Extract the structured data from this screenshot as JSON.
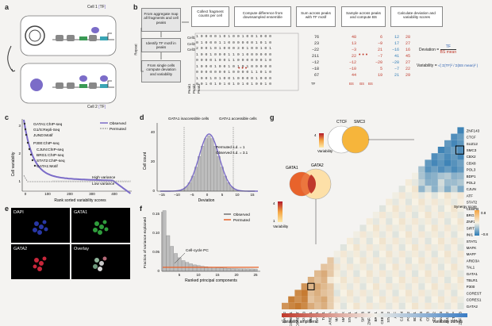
{
  "panels": {
    "a": "a",
    "b": "b",
    "c": "c",
    "d": "d",
    "e": "e",
    "f": "f",
    "g": "g"
  },
  "panel_a": {
    "cell1": "Cell 1",
    "cell2": "Cell 2",
    "tf": "TF"
  },
  "panel_b": {
    "side_label": "Repeat",
    "flow_left": [
      "From aggregate map all fragments and cell peaks",
      "Identify TF motif in peaks",
      "From single cells compute deviation and variability"
    ],
    "steps": [
      "Collect fragment counts per cell",
      "Compute difference from downsampled ensemble",
      "Sum across peaks with TF motif",
      "Sample across peaks and compute BS",
      "Calculate deviation and variability scores"
    ],
    "rows": [
      "Cell1",
      "Cell2",
      "Cell3",
      "",
      "",
      "",
      "",
      "",
      ""
    ],
    "peak_labels": [
      "Peak1",
      "Peak2",
      "Peak3"
    ],
    "matrix": [
      "1 0 0 0 0 1 0 1 0 0 1 0 0 1 0 0 0",
      "0 1 0 0 0 1 1 0 0 0 0 0 0 1 0 1 0",
      "2 0 0 1 0 1 0 0 0 3 0 1 0 0 1 0 1",
      "1 0 0 1 0 0 0 1 1 0 1 0 0 0 0 0 0",
      "0 0 0 0 1 0 0 1 1 0 0 0 0 0 0 1 0",
      "1 0 0 0 1 0 0 1 0 1 0 1 0 0 0 0 0",
      "0 0 0 0 0 0 0 1 0 0 0 0 1 1 0 1 0",
      "1 0 0 1 0 1 0 0 1 0 0 0 0 1 0 0 0",
      "0 0 1 0 1 0 1 0 1 0 1 0 1 0 0 1 0"
    ],
    "sum_col": [
      "76",
      "23",
      "−22",
      "211",
      "−12",
      "−18",
      "67"
    ],
    "bs_col1": [
      "48",
      "13",
      "−3",
      "22",
      "−12",
      "−10",
      "44"
    ],
    "bs_col2": [
      "6",
      "−9",
      "21",
      "−7",
      "−20",
      "5",
      "19"
    ],
    "bs_col3": [
      "12",
      "17",
      "−16",
      "41",
      "−20",
      "−7",
      "21"
    ],
    "bs_col4": [
      "28",
      "27",
      "16",
      "45",
      "27",
      "22",
      "29"
    ],
    "tf_label": "TF",
    "bs_label": "BS",
    "deviation_label": "Deviation =",
    "variability_label": "Variability =",
    "formula_tf": "TF",
    "formula_bs": "BS mean",
    "formula_var": "√( Σ(TF)² / Σ(BS mean)² )"
  },
  "panel_c": {
    "ylabel": "Cell variability",
    "xlabel": "Rank sorted variability scores",
    "legend": [
      "Observed",
      "Permuted"
    ],
    "labels": [
      "GATA1:ChIP-seq",
      "G1/S:Repli-Seq",
      "JUND:Motif",
      "P300:ChIP-seq",
      "CJUN:ChIP-seq",
      "BRG1:ChIP-seq",
      "STAT2:ChIP-seq",
      "GATA1:Motif"
    ],
    "high": "High variance",
    "low": "Low variance",
    "xticks": [
      "0",
      "100",
      "200",
      "300",
      "400"
    ],
    "yticks": [
      "1",
      "2",
      "3"
    ]
  },
  "panel_d": {
    "ylabel": "Cell count",
    "xlabel": "Deviation",
    "left_title": "GATA1 inaccessible cells",
    "right_title": "GATA1 accessible cells",
    "perm": "Permuted s.d. = 1",
    "obs": "Observed s.d. = 3.1",
    "xticks": [
      "−15",
      "−10",
      "−5",
      "0",
      "5",
      "10",
      "15"
    ],
    "yticks": [
      "0",
      "20",
      "40"
    ]
  },
  "panel_e": {
    "labels": [
      "DAPI",
      "GATA1",
      "GATA2",
      "Overlay"
    ]
  },
  "panel_f": {
    "ylabel": "Fraction of variance explained",
    "xlabel": "Ranked principal components",
    "legend": [
      "Observed",
      "Permuted"
    ],
    "annotation": "Cell-cycle PC",
    "xticks": [
      "5",
      "10",
      "15",
      "20",
      "25"
    ],
    "yticks": [
      "0",
      "0.05",
      "0.10",
      "0.15"
    ]
  },
  "panel_g": {
    "genes": [
      "ZNF143",
      "CTCF",
      "SUZ12",
      "SMC3",
      "CBX2",
      "CBX8",
      "POL3",
      "BDP1",
      "POL2",
      "CJUN",
      "ATF",
      "STAT2",
      "CEBPB",
      "BRG1",
      "ZNF274",
      "SIRT6",
      "INI1",
      "STAT1",
      "MAFK",
      "MAFF",
      "ARID3A",
      "TAL1",
      "GATA1",
      "TBLR1",
      "P300",
      "COREST",
      "CORES1",
      "GATA2"
    ],
    "venn1": [
      "CTCF",
      "SMC3"
    ],
    "venn2": [
      "GATA1",
      "GATA2"
    ],
    "variability": "Variability",
    "scale_hi": "4",
    "scale_lo": "1",
    "synergy": "Synergy score",
    "syn_hi": "0.8",
    "syn_lo": "−0.8",
    "amplifiers": "Variability amplifiers",
    "buffers": "Variability buffers"
  },
  "colors": {
    "purple": "#7b6cc8",
    "orange": "#e8632b",
    "red": "#c0392b",
    "blue": "#2c7bb6"
  }
}
